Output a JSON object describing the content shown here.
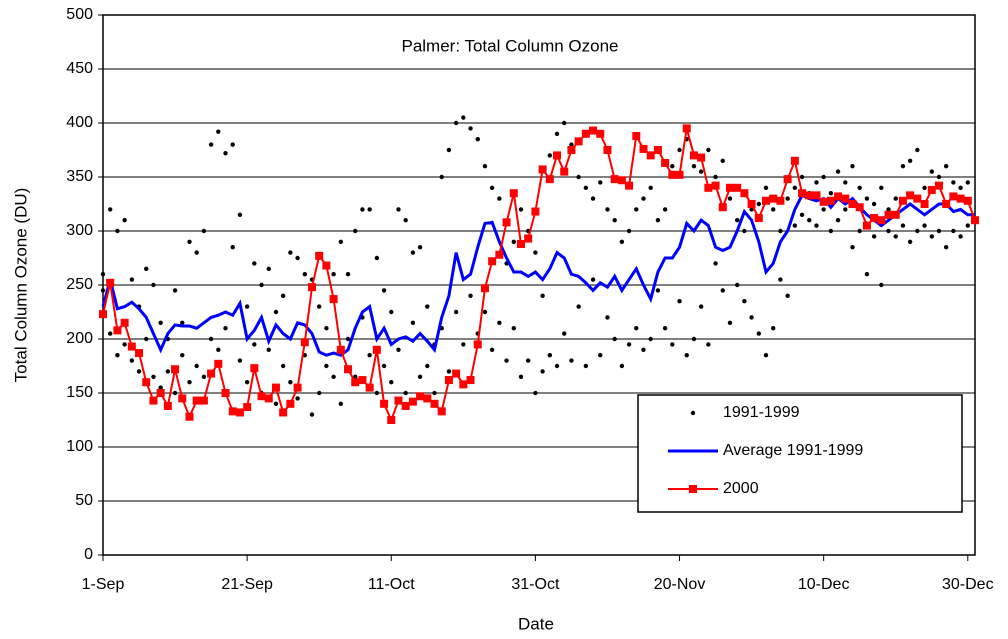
{
  "chart_data": {
    "type": "line",
    "title": "Palmer: Total Column Ozone",
    "x_label": "Date",
    "y_label": "Total Column Ozone (DU)",
    "xlim": [
      0,
      121
    ],
    "xticks": [
      {
        "value": 0,
        "label": "1-Sep"
      },
      {
        "value": 20,
        "label": "21-Sep"
      },
      {
        "value": 40,
        "label": "11-Oct"
      },
      {
        "value": 60,
        "label": "31-Oct"
      },
      {
        "value": 80,
        "label": "20-Nov"
      },
      {
        "value": 100,
        "label": "10-Dec"
      },
      {
        "value": 120,
        "label": "30-Dec"
      }
    ],
    "ylim": [
      0,
      500
    ],
    "yticks": [
      0,
      50,
      100,
      150,
      200,
      250,
      300,
      350,
      400,
      450,
      500
    ],
    "grid": true,
    "legend": "lower right",
    "series": [
      {
        "name": "1991-1999",
        "color": "#000000",
        "mode": "markers",
        "x": [
          0,
          0,
          1,
          1,
          2,
          2,
          3,
          3,
          4,
          4,
          5,
          5,
          6,
          6,
          7,
          7,
          8,
          8,
          9,
          9,
          10,
          10,
          11,
          11,
          12,
          12,
          13,
          13,
          14,
          14,
          15,
          15,
          16,
          16,
          17,
          17,
          18,
          18,
          19,
          19,
          20,
          20,
          21,
          21,
          22,
          22,
          23,
          23,
          24,
          24,
          25,
          25,
          26,
          26,
          27,
          27,
          28,
          28,
          29,
          29,
          30,
          30,
          31,
          31,
          32,
          32,
          33,
          33,
          34,
          34,
          35,
          35,
          36,
          36,
          37,
          37,
          38,
          38,
          39,
          39,
          40,
          40,
          41,
          41,
          42,
          42,
          43,
          43,
          44,
          44,
          45,
          45,
          46,
          46,
          47,
          47,
          48,
          48,
          49,
          49,
          50,
          50,
          51,
          51,
          52,
          52,
          53,
          53,
          54,
          54,
          55,
          55,
          56,
          56,
          57,
          57,
          58,
          58,
          59,
          59,
          60,
          60,
          61,
          61,
          62,
          62,
          63,
          63,
          64,
          64,
          65,
          65,
          66,
          66,
          67,
          67,
          68,
          68,
          69,
          69,
          70,
          70,
          71,
          71,
          72,
          72,
          73,
          73,
          74,
          74,
          75,
          75,
          76,
          76,
          77,
          77,
          78,
          78,
          79,
          79,
          80,
          80,
          81,
          81,
          82,
          82,
          83,
          83,
          84,
          84,
          85,
          85,
          86,
          86,
          87,
          87,
          88,
          88,
          89,
          89,
          90,
          90,
          91,
          91,
          92,
          92,
          93,
          93,
          94,
          94,
          95,
          95,
          96,
          96,
          97,
          97,
          98,
          98,
          99,
          99,
          100,
          100,
          101,
          101,
          102,
          102,
          103,
          103,
          104,
          104,
          105,
          105,
          106,
          106,
          107,
          107,
          108,
          108,
          109,
          109,
          110,
          110,
          111,
          111,
          112,
          112,
          113,
          113,
          114,
          114,
          115,
          115,
          116,
          116,
          117,
          117,
          118,
          118,
          119,
          119,
          120,
          120
        ],
        "values": [
          245,
          260,
          320,
          205,
          300,
          185,
          310,
          195,
          255,
          180,
          230,
          170,
          265,
          200,
          250,
          165,
          215,
          155,
          200,
          170,
          245,
          150,
          185,
          215,
          160,
          290,
          280,
          175,
          300,
          165,
          380,
          200,
          392,
          190,
          372,
          210,
          380,
          285,
          315,
          180,
          230,
          160,
          270,
          195,
          250,
          150,
          265,
          190,
          225,
          140,
          240,
          175,
          280,
          160,
          275,
          145,
          260,
          185,
          255,
          130,
          230,
          150,
          210,
          175,
          165,
          260,
          290,
          140,
          260,
          200,
          300,
          165,
          320,
          220,
          320,
          185,
          275,
          150,
          245,
          175,
          225,
          160,
          320,
          190,
          310,
          150,
          280,
          215,
          285,
          165,
          230,
          175,
          195,
          150,
          350,
          210,
          375,
          170,
          400,
          225,
          405,
          195,
          395,
          240,
          385,
          205,
          360,
          225,
          340,
          190,
          330,
          215,
          270,
          180,
          290,
          210,
          320,
          165,
          300,
          180,
          280,
          150,
          240,
          170,
          370,
          185,
          390,
          175,
          400,
          205,
          380,
          180,
          350,
          230,
          340,
          175,
          330,
          255,
          345,
          185,
          320,
          220,
          310,
          200,
          290,
          175,
          300,
          195,
          320,
          210,
          330,
          190,
          340,
          200,
          310,
          245,
          320,
          210,
          360,
          195,
          375,
          235,
          385,
          185,
          360,
          200,
          355,
          230,
          375,
          195,
          350,
          270,
          365,
          245,
          330,
          215,
          310,
          250,
          300,
          235,
          320,
          220,
          325,
          205,
          340,
          185,
          320,
          210,
          300,
          255,
          330,
          240,
          340,
          305,
          350,
          315,
          335,
          310,
          345,
          305,
          350,
          320,
          335,
          300,
          355,
          310,
          345,
          320,
          360,
          285,
          340,
          300,
          330,
          260,
          325,
          295,
          340,
          250,
          320,
          300,
          330,
          295,
          360,
          305,
          365,
          290,
          375,
          300,
          340,
          305,
          355,
          295,
          350,
          300,
          360,
          285,
          345,
          300,
          340,
          295,
          345,
          305
        ]
      },
      {
        "name": "Average 1991-1999",
        "color": "#0000ff",
        "mode": "lines",
        "x": [
          0,
          1,
          2,
          3,
          4,
          5,
          6,
          7,
          8,
          9,
          10,
          11,
          12,
          13,
          14,
          15,
          16,
          17,
          18,
          19,
          20,
          21,
          22,
          23,
          24,
          25,
          26,
          27,
          28,
          29,
          30,
          31,
          32,
          33,
          34,
          35,
          36,
          37,
          38,
          39,
          40,
          41,
          42,
          43,
          44,
          45,
          46,
          47,
          48,
          49,
          50,
          51,
          52,
          53,
          54,
          55,
          56,
          57,
          58,
          59,
          60,
          61,
          62,
          63,
          64,
          65,
          66,
          67,
          68,
          69,
          70,
          71,
          72,
          73,
          74,
          75,
          76,
          77,
          78,
          79,
          80,
          81,
          82,
          83,
          84,
          85,
          86,
          87,
          88,
          89,
          90,
          91,
          92,
          93,
          94,
          95,
          96,
          97,
          98,
          99,
          100,
          101,
          102,
          103,
          104,
          105,
          106,
          107,
          108,
          109,
          110,
          111,
          112,
          113,
          114,
          115,
          116,
          117,
          118,
          119,
          120,
          121
        ],
        "values": [
          230,
          255,
          228,
          230,
          234,
          228,
          220,
          205,
          190,
          205,
          213,
          212,
          212,
          210,
          215,
          220,
          222,
          225,
          222,
          233,
          200,
          208,
          220,
          198,
          213,
          205,
          200,
          215,
          213,
          205,
          188,
          185,
          187,
          185,
          190,
          210,
          225,
          230,
          200,
          210,
          195,
          200,
          202,
          198,
          205,
          198,
          190,
          220,
          240,
          280,
          255,
          260,
          285,
          307,
          308,
          290,
          275,
          262,
          262,
          258,
          262,
          255,
          265,
          280,
          275,
          260,
          258,
          252,
          245,
          252,
          248,
          258,
          245,
          255,
          265,
          250,
          237,
          262,
          275,
          275,
          285,
          307,
          300,
          310,
          305,
          285,
          282,
          285,
          300,
          318,
          310,
          290,
          262,
          270,
          290,
          300,
          320,
          333,
          330,
          328,
          330,
          322,
          330,
          325,
          330,
          322,
          315,
          310,
          305,
          310,
          315,
          320,
          325,
          320,
          315,
          320,
          325,
          325,
          318,
          320,
          315,
          315
        ]
      },
      {
        "name": "2000",
        "color": "#ff0000",
        "mode": "lines+markers",
        "x": [
          0,
          1,
          2,
          3,
          4,
          5,
          6,
          7,
          8,
          9,
          10,
          11,
          12,
          13,
          14,
          15,
          16,
          17,
          18,
          19,
          20,
          21,
          22,
          23,
          24,
          25,
          26,
          27,
          28,
          29,
          30,
          31,
          32,
          33,
          34,
          35,
          36,
          37,
          38,
          39,
          40,
          41,
          42,
          43,
          44,
          45,
          46,
          47,
          48,
          49,
          50,
          51,
          52,
          53,
          54,
          55,
          56,
          57,
          58,
          59,
          60,
          61,
          62,
          63,
          64,
          65,
          66,
          67,
          68,
          69,
          70,
          71,
          72,
          73,
          74,
          75,
          76,
          77,
          78,
          79,
          80,
          81,
          82,
          83,
          84,
          85,
          86,
          87,
          88,
          89,
          90,
          91,
          92,
          93,
          94,
          95,
          96,
          97,
          98,
          99,
          100,
          101,
          102,
          103,
          104,
          105,
          106,
          107,
          108,
          109,
          110,
          111,
          112,
          113,
          114,
          115,
          116,
          117,
          118,
          119,
          120,
          121
        ],
        "values": [
          223,
          252,
          208,
          215,
          193,
          187,
          160,
          143,
          150,
          138,
          172,
          145,
          128,
          143,
          143,
          168,
          177,
          150,
          133,
          132,
          137,
          173,
          147,
          145,
          155,
          132,
          140,
          155,
          197,
          248,
          277,
          268,
          237,
          190,
          172,
          160,
          162,
          155,
          190,
          140,
          125,
          143,
          138,
          142,
          147,
          145,
          140,
          133,
          162,
          168,
          158,
          162,
          195,
          247,
          272,
          278,
          308,
          335,
          288,
          293,
          318,
          357,
          348,
          370,
          355,
          375,
          383,
          390,
          393,
          390,
          375,
          348,
          347,
          342,
          388,
          376,
          370,
          375,
          363,
          352,
          352,
          395,
          370,
          368,
          340,
          342,
          322,
          340,
          340,
          335,
          325,
          312,
          328,
          330,
          328,
          348,
          365,
          335,
          333,
          333,
          327,
          328,
          332,
          330,
          325,
          322,
          305,
          312,
          310,
          315,
          315,
          328,
          333,
          330,
          325,
          338,
          342,
          325,
          332,
          330,
          328,
          310
        ]
      }
    ]
  }
}
